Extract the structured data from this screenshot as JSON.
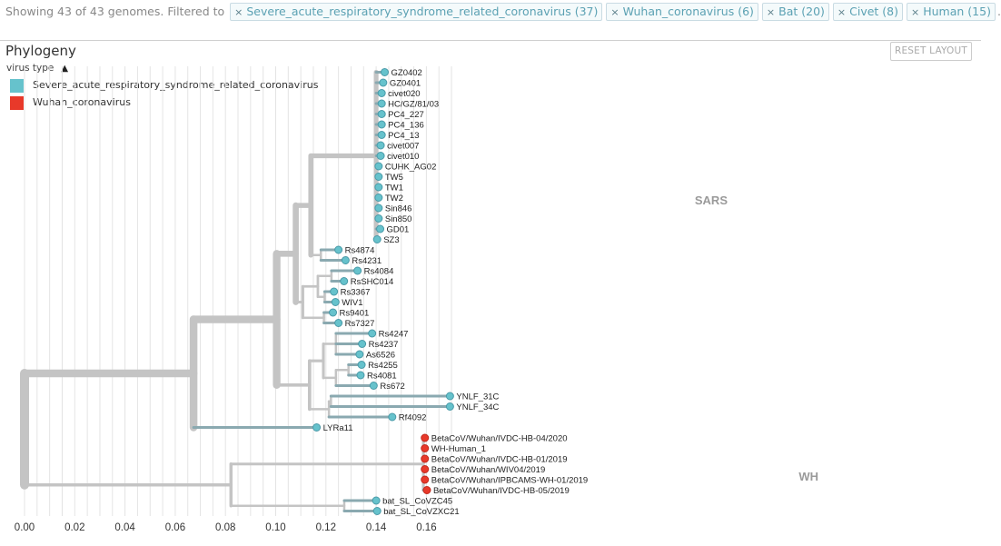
{
  "summary": {
    "prefix": "Showing 43 of 43 genomes. Filtered to",
    "suffix": ".",
    "filters": [
      {
        "label": "Severe_acute_respiratory_syndrome_related_coronavirus (37)"
      },
      {
        "label": "Wuhan_coronavirus (6)"
      },
      {
        "label": "Bat (20)"
      },
      {
        "label": "Civet (8)"
      },
      {
        "label": "Human (15)"
      }
    ],
    "remove_glyph": "×"
  },
  "panel": {
    "title": "Phylogeny",
    "reset_label": "RESET LAYOUT"
  },
  "legend": {
    "header": "virus type",
    "items": [
      {
        "label": "Severe_acute_respiratory_syndrome_related_coronavirus",
        "color": "#66c2cc"
      },
      {
        "label": "Wuhan_coronavirus",
        "color": "#e8392a"
      }
    ]
  },
  "colors": {
    "branch": "#c4c4c4",
    "tip_sars": "#66c2cc",
    "tip_wuhan": "#e8392a",
    "tip_stroke": "#4a9aa8",
    "grid": "#e4e4e4"
  },
  "axis": {
    "ticks": [
      "0.00",
      "0.02",
      "0.04",
      "0.06",
      "0.08",
      "0.10",
      "0.12",
      "0.14",
      "0.16"
    ]
  },
  "clade_labels": {
    "sars": "SARS",
    "wh": "WH"
  },
  "tips": [
    {
      "name": "GZ0402",
      "div": 0.1434,
      "type": "sars"
    },
    {
      "name": "GZ0401",
      "div": 0.1428,
      "type": "sars"
    },
    {
      "name": "civet020",
      "div": 0.1422,
      "type": "sars"
    },
    {
      "name": "HC/GZ/81/03",
      "div": 0.1422,
      "type": "sars"
    },
    {
      "name": "PC4_227",
      "div": 0.1422,
      "type": "sars"
    },
    {
      "name": "PC4_136",
      "div": 0.1422,
      "type": "sars"
    },
    {
      "name": "PC4_13",
      "div": 0.1422,
      "type": "sars"
    },
    {
      "name": "civet007",
      "div": 0.1418,
      "type": "sars"
    },
    {
      "name": "civet010",
      "div": 0.1418,
      "type": "sars"
    },
    {
      "name": "CUHK_AG02",
      "div": 0.141,
      "type": "sars"
    },
    {
      "name": "TW5",
      "div": 0.141,
      "type": "sars"
    },
    {
      "name": "TW1",
      "div": 0.141,
      "type": "sars"
    },
    {
      "name": "TW2",
      "div": 0.141,
      "type": "sars"
    },
    {
      "name": "Sin846",
      "div": 0.141,
      "type": "sars"
    },
    {
      "name": "Sin850",
      "div": 0.141,
      "type": "sars"
    },
    {
      "name": "GD01",
      "div": 0.1416,
      "type": "sars"
    },
    {
      "name": "SZ3",
      "div": 0.1404,
      "type": "sars"
    },
    {
      "name": "Rs4874",
      "div": 0.125,
      "type": "sars"
    },
    {
      "name": "Rs4231",
      "div": 0.1278,
      "type": "sars"
    },
    {
      "name": "Rs4084",
      "div": 0.1326,
      "type": "sars"
    },
    {
      "name": "RsSHC014",
      "div": 0.1272,
      "type": "sars"
    },
    {
      "name": "Rs3367",
      "div": 0.1232,
      "type": "sars"
    },
    {
      "name": "WIV1",
      "div": 0.1238,
      "type": "sars"
    },
    {
      "name": "Rs9401",
      "div": 0.1228,
      "type": "sars"
    },
    {
      "name": "Rs7327",
      "div": 0.125,
      "type": "sars"
    },
    {
      "name": "Rs4247",
      "div": 0.1384,
      "type": "sars"
    },
    {
      "name": "Rs4237",
      "div": 0.1344,
      "type": "sars"
    },
    {
      "name": "As6526",
      "div": 0.1334,
      "type": "sars"
    },
    {
      "name": "Rs4255",
      "div": 0.1342,
      "type": "sars"
    },
    {
      "name": "Rs4081",
      "div": 0.1338,
      "type": "sars"
    },
    {
      "name": "Rs672",
      "div": 0.139,
      "type": "sars"
    },
    {
      "name": "YNLF_31C",
      "div": 0.1694,
      "type": "sars"
    },
    {
      "name": "YNLF_34C",
      "div": 0.1694,
      "type": "sars"
    },
    {
      "name": "Rf4092",
      "div": 0.1464,
      "type": "sars"
    },
    {
      "name": "LYRa11",
      "div": 0.1163,
      "type": "sars"
    },
    {
      "name": "BetaCoV/Wuhan/IVDC-HB-04/2020",
      "div": 0.1594,
      "type": "wuhan"
    },
    {
      "name": "WH-Human_1",
      "div": 0.1594,
      "type": "wuhan"
    },
    {
      "name": "BetaCoV/Wuhan/IVDC-HB-01/2019",
      "div": 0.1594,
      "type": "wuhan"
    },
    {
      "name": "BetaCoV/Wuhan/WIV04/2019",
      "div": 0.1594,
      "type": "wuhan"
    },
    {
      "name": "BetaCoV/Wuhan/IPBCAMS-WH-01/2019",
      "div": 0.1594,
      "type": "wuhan"
    },
    {
      "name": "BetaCoV/Wuhan/IVDC-HB-05/2019",
      "div": 0.1602,
      "type": "wuhan"
    },
    {
      "name": "bat_SL_CoVZC45",
      "div": 0.14,
      "type": "sars"
    },
    {
      "name": "bat_SL_CoVZXC21",
      "div": 0.1404,
      "type": "sars"
    }
  ],
  "tree": {
    "children": [
      {
        "div": 0.0673,
        "children": [
          {
            "div": 0.1004,
            "children": [
              {
                "div": 0.108,
                "children": [
                  {
                    "div": 0.114,
                    "children": [
                      {
                        "div": 0.14,
                        "children": [
                          {
                            "tip": 0
                          },
                          {
                            "tip": 1
                          },
                          {
                            "tip": 2
                          },
                          {
                            "tip": 3
                          },
                          {
                            "tip": 4
                          },
                          {
                            "tip": 5
                          },
                          {
                            "tip": 6
                          },
                          {
                            "tip": 7
                          },
                          {
                            "tip": 8
                          },
                          {
                            "tip": 9
                          },
                          {
                            "tip": 10
                          },
                          {
                            "tip": 11
                          },
                          {
                            "tip": 12
                          },
                          {
                            "tip": 13
                          },
                          {
                            "tip": 14
                          },
                          {
                            "tip": 15
                          },
                          {
                            "tip": 16
                          }
                        ]
                      },
                      {
                        "div": 0.118,
                        "children": [
                          {
                            "tip": 17
                          },
                          {
                            "tip": 18
                          }
                        ]
                      }
                    ]
                  },
                  {
                    "div": 0.1108,
                    "children": [
                      {
                        "div": 0.1168,
                        "children": [
                          {
                            "div": 0.1222,
                            "children": [
                              {
                                "tip": 19
                              },
                              {
                                "tip": 20
                              }
                            ]
                          },
                          {
                            "div": 0.1195,
                            "children": [
                              {
                                "tip": 21
                              },
                              {
                                "tip": 22
                              }
                            ]
                          }
                        ]
                      },
                      {
                        "div": 0.1192,
                        "children": [
                          {
                            "tip": 23
                          },
                          {
                            "tip": 24
                          }
                        ]
                      }
                    ]
                  }
                ]
              },
              {
                "div": 0.1135,
                "children": [
                  {
                    "div": 0.119,
                    "children": [
                      {
                        "div": 0.124,
                        "children": [
                          {
                            "tip": 25
                          },
                          {
                            "tip": 26
                          },
                          {
                            "tip": 27
                          }
                        ]
                      },
                      {
                        "div": 0.124,
                        "children": [
                          {
                            "div": 0.129,
                            "children": [
                              {
                                "tip": 28
                              },
                              {
                                "tip": 29
                              }
                            ]
                          },
                          {
                            "tip": 30
                          }
                        ]
                      }
                    ]
                  },
                  {
                    "div": 0.1212,
                    "children": [
                      {
                        "div": 0.122,
                        "children": [
                          {
                            "tip": 31
                          },
                          {
                            "tip": 32
                          }
                        ]
                      },
                      {
                        "tip": 33
                      }
                    ]
                  }
                ]
              }
            ]
          },
          {
            "tip": 34
          }
        ]
      },
      {
        "div": 0.0822,
        "children": [
          {
            "div": 0.1588,
            "children": [
              {
                "tip": 35
              },
              {
                "tip": 36
              },
              {
                "tip": 37
              },
              {
                "tip": 38
              },
              {
                "tip": 39
              },
              {
                "tip": 40
              }
            ]
          },
          {
            "div": 0.1273,
            "children": [
              {
                "tip": 41
              },
              {
                "tip": 42
              }
            ]
          }
        ]
      }
    ]
  }
}
